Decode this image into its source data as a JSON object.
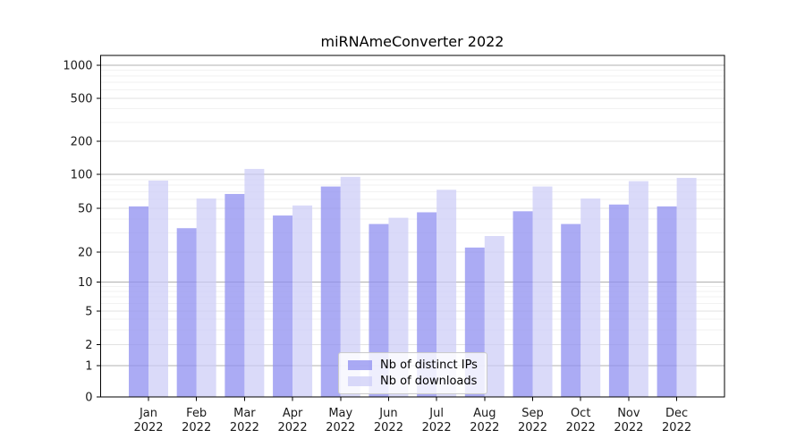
{
  "chart_data": {
    "type": "bar",
    "title": "miRNAmeConverter 2022",
    "categories": [
      "Jan",
      "Feb",
      "Mar",
      "Apr",
      "May",
      "Jun",
      "Jul",
      "Aug",
      "Sep",
      "Oct",
      "Nov",
      "Dec"
    ],
    "category_year": "2022",
    "series": [
      {
        "name": "Nb of distinct IPs",
        "color": "#8f8ff0",
        "opacity": 0.75,
        "values": [
          52,
          33,
          67,
          43,
          78,
          36,
          46,
          22,
          47,
          36,
          54,
          52
        ]
      },
      {
        "name": "Nb of downloads",
        "color": "#ccccf7",
        "opacity": 0.72,
        "values": [
          88,
          61,
          112,
          53,
          95,
          41,
          73,
          28,
          78,
          61,
          87,
          93
        ]
      }
    ],
    "xlabel": "",
    "ylabel": "",
    "yscale": "symlog",
    "ylim": [
      0,
      1000
    ],
    "yticks": [
      0,
      1,
      2,
      5,
      10,
      20,
      50,
      100,
      200,
      500,
      1000
    ],
    "yticks_minor": [
      3,
      4,
      6,
      7,
      8,
      9,
      30,
      40,
      60,
      70,
      80,
      90,
      300,
      400,
      600,
      700,
      800,
      900
    ],
    "grid": true,
    "legend_position": "lower-center-inside",
    "colors": {
      "axis": "#000000",
      "tick_label": "#1a1a1a",
      "major_grid": "#b0b0b0",
      "labeled_grid": "#e2e2e2",
      "minor_grid": "#f2f2f2"
    }
  }
}
